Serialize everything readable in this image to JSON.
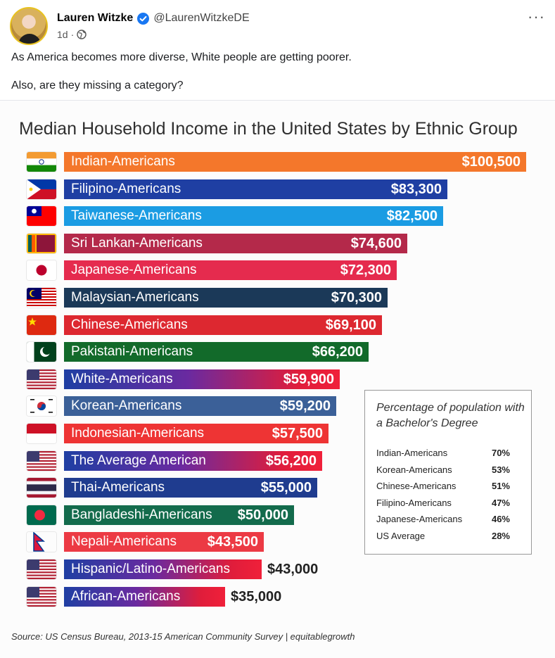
{
  "post": {
    "author_name": "Lauren Witzke",
    "handle": "@LaurenWitzkeDE",
    "time": "1d",
    "meta_separator": "·",
    "more_label": "···",
    "text_line_1": "As America becomes more diverse, White people are getting poorer.",
    "text_line_2": "Also, are they missing a category?"
  },
  "colors": {
    "verified": "#1877f2",
    "inset_border": "#999999"
  },
  "icons": {
    "verified": "verified-badge-icon",
    "audience": "globe-icon",
    "more": "more-options-icon"
  },
  "chart_data": {
    "type": "bar",
    "orientation": "horizontal",
    "title": "Median Household Income in the United States  by Ethnic Group",
    "currency_prefix": "$",
    "xlim": [
      0,
      100500
    ],
    "bars": [
      {
        "label": "Indian-Americans",
        "value": 100500,
        "display": "$100,500",
        "color": "#f4772b",
        "flag": "india"
      },
      {
        "label": "Filipino-Americans",
        "value": 83300,
        "display": "$83,300",
        "color": "#1f3fa3",
        "flag": "philippines"
      },
      {
        "label": "Taiwanese-Americans",
        "value": 82500,
        "display": "$82,500",
        "color": "#1b9ce3",
        "flag": "taiwan"
      },
      {
        "label": "Sri Lankan-Americans",
        "value": 74600,
        "display": "$74,600",
        "color": "#b4294a",
        "flag": "sri-lanka"
      },
      {
        "label": "Japanese-Americans",
        "value": 72300,
        "display": "$72,300",
        "color": "#e52b4e",
        "flag": "japan"
      },
      {
        "label": "Malaysian-Americans",
        "value": 70300,
        "display": "$70,300",
        "color": "#1b3958",
        "flag": "malaysia"
      },
      {
        "label": "Chinese-Americans",
        "value": 69100,
        "display": "$69,100",
        "color": "#dd2830",
        "flag": "china"
      },
      {
        "label": "Pakistani-Americans",
        "value": 66200,
        "display": "$66,200",
        "color": "#126a2a",
        "flag": "pakistan"
      },
      {
        "label": "White-Americans",
        "value": 59900,
        "display": "$59,900",
        "color": "gradient-usa",
        "flag": "usa"
      },
      {
        "label": "Korean-Americans",
        "value": 59200,
        "display": "$59,200",
        "color": "#3b6098",
        "flag": "korea"
      },
      {
        "label": "Indonesian-Americans",
        "value": 57500,
        "display": "$57,500",
        "color": "#ee3434",
        "flag": "indonesia"
      },
      {
        "label": "The Average American",
        "value": 56200,
        "display": "$56,200",
        "color": "gradient-usa",
        "flag": "usa"
      },
      {
        "label": "Thai-Americans",
        "value": 55000,
        "display": "$55,000",
        "color": "#1f3c8f",
        "flag": "thailand"
      },
      {
        "label": "Bangladeshi-Americans",
        "value": 50000,
        "display": "$50,000",
        "color": "#136b4c",
        "flag": "bangladesh"
      },
      {
        "label": "Nepali-Americans",
        "value": 43500,
        "display": "$43,500",
        "color": "#ec3a44",
        "flag": "nepal"
      },
      {
        "label": "Hispanic/Latino-Americans",
        "value": 43000,
        "display": "$43,000",
        "color": "gradient-usa",
        "flag": "usa"
      },
      {
        "label": "African-Americans",
        "value": 35000,
        "display": "$35,000",
        "color": "gradient-usa",
        "flag": "usa"
      }
    ],
    "inset": {
      "title": "Percentage of population with a Bachelor's Degree",
      "rows": [
        {
          "group": "Indian-Americans",
          "percent": "70%"
        },
        {
          "group": "Korean-Americans",
          "percent": "53%"
        },
        {
          "group": "Chinese-Americans",
          "percent": "51%"
        },
        {
          "group": "Filipino-Americans",
          "percent": "47%"
        },
        {
          "group": "Japanese-Americans",
          "percent": "46%"
        },
        {
          "group": "US Average",
          "percent": "28%"
        }
      ]
    },
    "source": "Source: US Census Bureau, 2013-15 American Community Survey | equitablegrowth"
  }
}
